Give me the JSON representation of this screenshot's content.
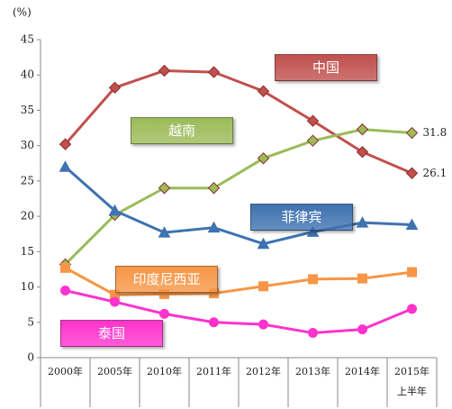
{
  "chart_data": {
    "type": "line",
    "y_unit": "(%)",
    "categories": [
      "2000年",
      "2005年",
      "2010年",
      "2011年",
      "2012年",
      "2013年",
      "2014年",
      "2015年\n上半年"
    ],
    "ylim": [
      0,
      45
    ],
    "yticks": [
      0,
      5,
      10,
      15,
      20,
      25,
      30,
      35,
      40,
      45
    ],
    "series": [
      {
        "name": "中国",
        "color": "#c0504d",
        "marker": "diamond",
        "values": [
          30.2,
          38.2,
          40.6,
          40.4,
          37.7,
          33.5,
          29.1,
          26.1
        ],
        "value_labels": [
          null,
          null,
          null,
          null,
          null,
          null,
          null,
          "26.1"
        ]
      },
      {
        "name": "越南",
        "color": "#9bbb59",
        "marker": "diamond",
        "values": [
          13.2,
          20.2,
          24.0,
          24.0,
          28.2,
          30.7,
          32.3,
          31.8
        ],
        "value_labels": [
          null,
          null,
          null,
          null,
          null,
          null,
          null,
          "31.8"
        ]
      },
      {
        "name": "菲律宾",
        "color": "#3f72b0",
        "marker": "triangle",
        "values": [
          27.0,
          20.8,
          17.7,
          18.4,
          16.1,
          17.8,
          19.1,
          18.8
        ]
      },
      {
        "name": "印度尼西亚",
        "color": "#f79646",
        "marker": "square",
        "values": [
          12.7,
          8.9,
          9.0,
          9.1,
          10.1,
          11.1,
          11.2,
          12.1
        ]
      },
      {
        "name": "泰国",
        "color": "#ff33cc",
        "marker": "circle",
        "values": [
          9.5,
          7.9,
          6.2,
          5.0,
          4.7,
          3.5,
          4.0,
          6.9
        ]
      }
    ]
  }
}
